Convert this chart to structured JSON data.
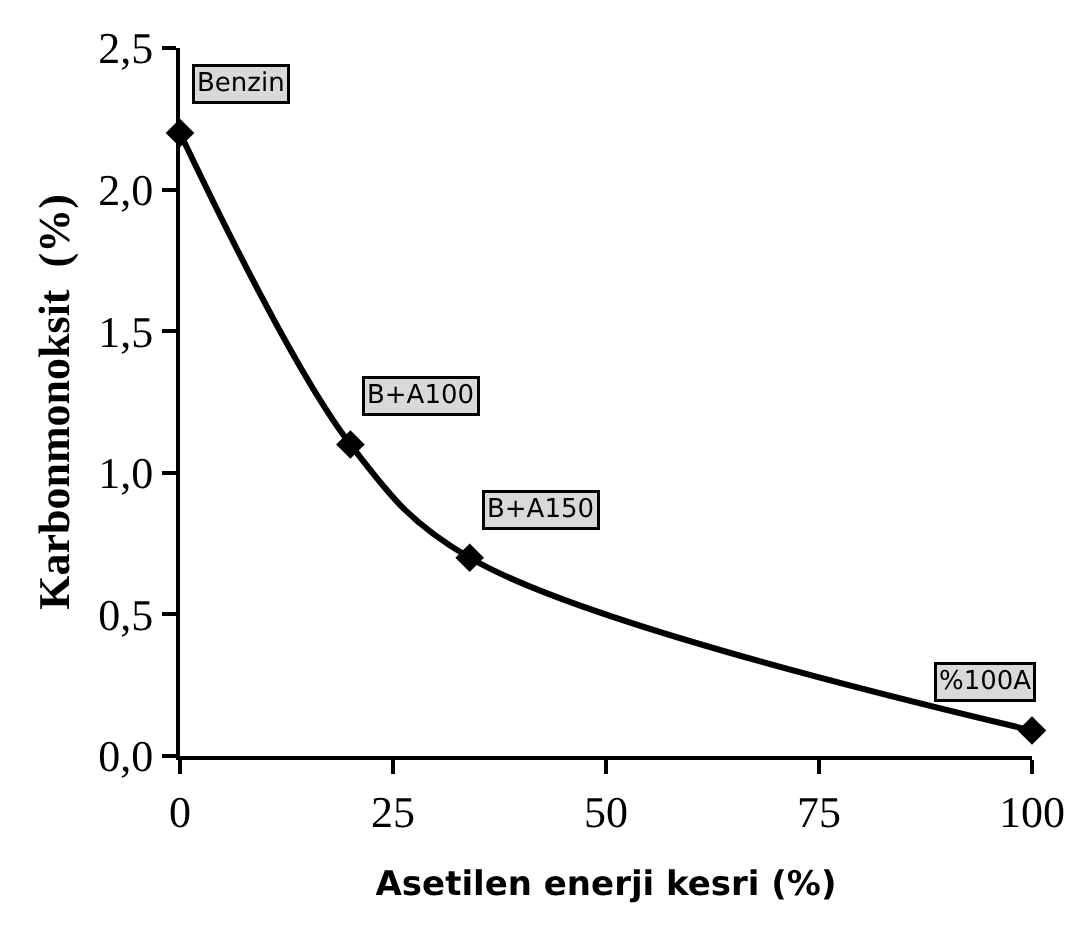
{
  "chart_data": {
    "type": "line",
    "xlabel": "Asetilen enerji kesri (%)",
    "ylabel": "Karbonmonoksit  (%)",
    "x": [
      0,
      20,
      34,
      100
    ],
    "series": [
      {
        "color": "#000000",
        "values": [
          2.2,
          1.1,
          0.7,
          0.09
        ]
      }
    ],
    "xlim": [
      0,
      100
    ],
    "xticks": [
      0,
      25,
      50,
      75,
      100
    ],
    "ylim": [
      0,
      2.5
    ],
    "yticks": [
      {
        "value": 0,
        "label": "0,0"
      },
      {
        "value": 0.5,
        "label": "0,5"
      },
      {
        "value": 1.0,
        "label": "1,0"
      },
      {
        "value": 1.5,
        "label": "1,5"
      },
      {
        "value": 2.0,
        "label": "2,0"
      },
      {
        "value": 2.5,
        "label": "2,5"
      }
    ],
    "annotations": [
      {
        "text": "Benzin",
        "x": 0,
        "y": 2.2
      },
      {
        "text": "B+A100",
        "x": 20,
        "y": 1.1
      },
      {
        "text": "B+A150",
        "x": 34,
        "y": 0.7
      },
      {
        "text": "%100A",
        "x": 100,
        "y": 0.09
      }
    ],
    "marker": "diamond",
    "line_style": "solid"
  }
}
